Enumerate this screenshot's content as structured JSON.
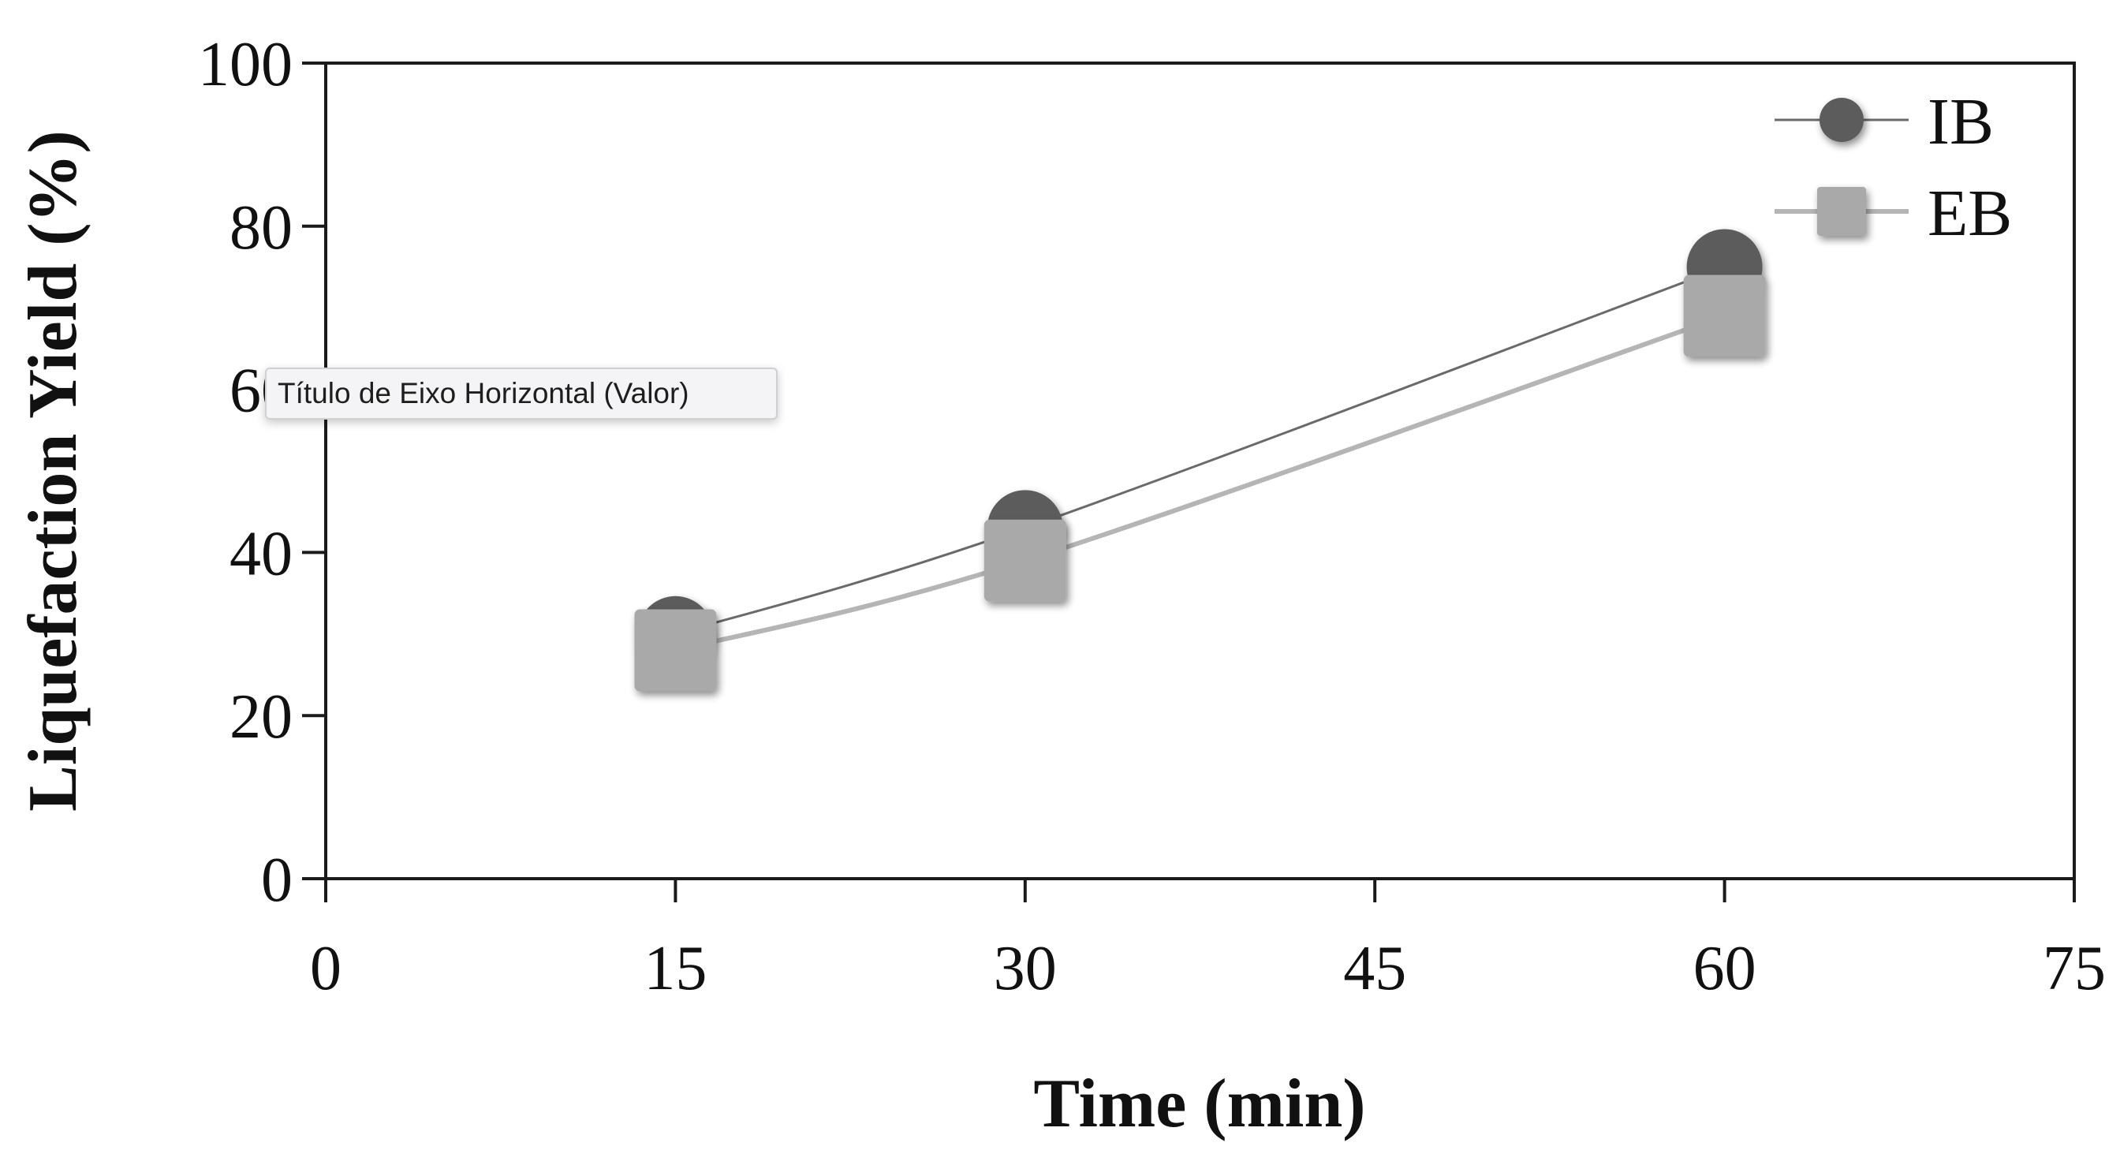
{
  "chart_data": {
    "type": "line",
    "title": "",
    "xlabel": "Time (min)",
    "ylabel": "Liquefaction Yield (%)",
    "xlim": [
      0,
      75
    ],
    "ylim": [
      0,
      100
    ],
    "x_ticks": [
      "0",
      "15",
      "30",
      "45",
      "60",
      "75"
    ],
    "y_ticks": [
      "0",
      "20",
      "40",
      "60",
      "80",
      "100"
    ],
    "grid": false,
    "legend_position": "top-right",
    "x": [
      15,
      30,
      60
    ],
    "series": [
      {
        "name": "IB",
        "values": [
          30,
          43,
          75
        ],
        "marker": "circle",
        "color": "#5c5c5c",
        "line_color": "#6a6a6a"
      },
      {
        "name": "EB",
        "values": [
          28,
          39,
          69
        ],
        "marker": "square",
        "color": "#a9a9a9",
        "line_color": "#b5b5b5"
      }
    ]
  },
  "tooltip": {
    "text": "Título de Eixo Horizontal (Valor)"
  }
}
